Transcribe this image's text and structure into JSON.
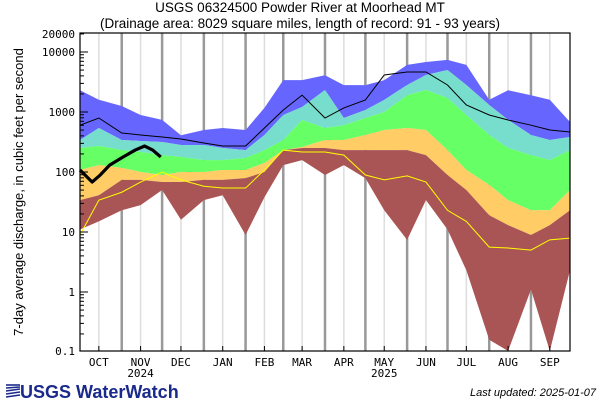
{
  "chart_data": {
    "type": "area",
    "title": "USGS 06324500 Powder River at Moorhead MT",
    "subtitle": "(Drainage area: 8029 square miles, length of record: 91 - 93 years)",
    "ylabel": "7-day average discharge, in cubic feet per second",
    "xlabel": "",
    "y_scale": "log",
    "ylim": [
      0.1,
      20000
    ],
    "y_ticks": [
      "20000",
      "10000",
      "1000",
      "100",
      "10",
      "1",
      "0.1"
    ],
    "x_range": [
      "2024-10-01",
      "2025-09-30"
    ],
    "x_ticks": [
      "OCT",
      "NOV",
      "DEC",
      "JAN",
      "FEB",
      "MAR",
      "APR",
      "MAY",
      "JUN",
      "JUL",
      "AUG",
      "SEP"
    ],
    "x_year_labels": [
      {
        "label": "2024",
        "under": "NOV"
      },
      {
        "label": "2025",
        "under": "MAY"
      }
    ],
    "grid": true,
    "dates": [
      "2024-10-01",
      "2024-10-15",
      "2024-11-01",
      "2024-11-15",
      "2024-12-01",
      "2024-12-15",
      "2025-01-01",
      "2025-01-15",
      "2025-02-01",
      "2025-02-15",
      "2025-03-01",
      "2025-03-15",
      "2025-04-01",
      "2025-04-15",
      "2025-05-01",
      "2025-05-15",
      "2025-06-01",
      "2025-06-15",
      "2025-07-01",
      "2025-07-15",
      "2025-08-01",
      "2025-08-15",
      "2025-09-01",
      "2025-09-15",
      "2025-09-30"
    ],
    "bands": [
      {
        "color": "#6666ff",
        "upper": [
          2300,
          1600,
          1260,
          890,
          740,
          410,
          500,
          540,
          500,
          1170,
          3400,
          3400,
          4100,
          2800,
          2800,
          3400,
          6100,
          6800,
          7400,
          6100,
          1600,
          2300,
          1900,
          1600,
          680
        ],
        "lower": [
          341,
          541,
          341,
          329,
          316,
          282,
          282,
          251,
          232,
          414,
          891,
          1210,
          2330,
          794,
          1080,
          1590,
          2820,
          4140,
          5010,
          2820,
          1310,
          740,
          414,
          341,
          383
        ]
      },
      {
        "color": "#77ddcc",
        "upper": [
          341,
          541,
          341,
          329,
          316,
          282,
          282,
          251,
          232,
          414,
          891,
          1210,
          2330,
          794,
          1080,
          1590,
          2820,
          4140,
          5010,
          2820,
          1310,
          740,
          414,
          341,
          383
        ],
        "lower": [
          251,
          271,
          232,
          215,
          191,
          178,
          158,
          158,
          171,
          232,
          341,
          736,
          541,
          600,
          794,
          1000,
          1900,
          2330,
          1710,
          890,
          414,
          251,
          191,
          158,
          232
        ]
      },
      {
        "color": "#66ff66",
        "upper": [
          251,
          271,
          232,
          215,
          191,
          178,
          158,
          158,
          171,
          232,
          341,
          736,
          541,
          600,
          794,
          1000,
          1900,
          2330,
          1710,
          890,
          414,
          251,
          191,
          158,
          232
        ],
        "lower": [
          108,
          130,
          117,
          100,
          89,
          100,
          100,
          108,
          108,
          141,
          232,
          261,
          341,
          341,
          414,
          501,
          541,
          501,
          232,
          108,
          61,
          34,
          23,
          23,
          50
        ]
      },
      {
        "color": "#ffcc66",
        "upper": [
          108,
          130,
          117,
          100,
          89,
          100,
          100,
          108,
          108,
          141,
          232,
          261,
          341,
          341,
          414,
          501,
          541,
          501,
          232,
          108,
          61,
          34,
          23,
          23,
          50
        ],
        "lower": [
          34,
          41,
          74,
          74,
          68,
          68,
          74,
          74,
          79,
          100,
          232,
          251,
          251,
          232,
          232,
          232,
          232,
          191,
          89,
          50,
          19,
          13,
          8.9,
          13,
          23
        ]
      },
      {
        "color": "#aa5555",
        "upper": [
          34,
          41,
          74,
          74,
          68,
          68,
          74,
          74,
          79,
          100,
          232,
          251,
          251,
          232,
          232,
          232,
          232,
          191,
          89,
          50,
          19,
          13,
          8.9,
          13,
          23
        ],
        "lower": [
          11,
          15,
          23,
          28,
          50,
          16,
          34,
          41,
          8.9,
          38,
          130,
          158,
          89,
          130,
          79,
          23,
          7.4,
          34,
          11,
          2.3,
          0.16,
          0.1,
          1.1,
          0.1,
          2.3
        ]
      }
    ],
    "lines": [
      {
        "color": "#000000",
        "width": "thin",
        "values": [
          603,
          794,
          447,
          414,
          383,
          355,
          304,
          271,
          271,
          541,
          1080,
          1910,
          794,
          1170,
          1590,
          4140,
          4640,
          4640,
          2820,
          1310,
          891,
          736,
          603,
          501,
          464
        ]
      },
      {
        "color": "#ffff00",
        "width": "thin",
        "values": [
          8.9,
          34,
          46,
          68,
          100,
          74,
          58,
          54,
          54,
          108,
          232,
          215,
          215,
          191,
          89,
          74,
          86,
          68,
          23,
          15,
          5.6,
          5.4,
          5.0,
          7.4,
          7.9
        ]
      }
    ],
    "current": {
      "color": "#000000",
      "dates": [
        "2024-10-01",
        "2024-10-10",
        "2024-10-16",
        "2024-10-23",
        "2024-11-02",
        "2024-11-11",
        "2024-11-18",
        "2024-11-24",
        "2024-11-30"
      ],
      "values": [
        108,
        68,
        89,
        130,
        178,
        232,
        271,
        232,
        178
      ]
    }
  },
  "footer": {
    "logo_text": "USGS WaterWatch",
    "last_updated": "Last updated: 2025-01-07"
  }
}
